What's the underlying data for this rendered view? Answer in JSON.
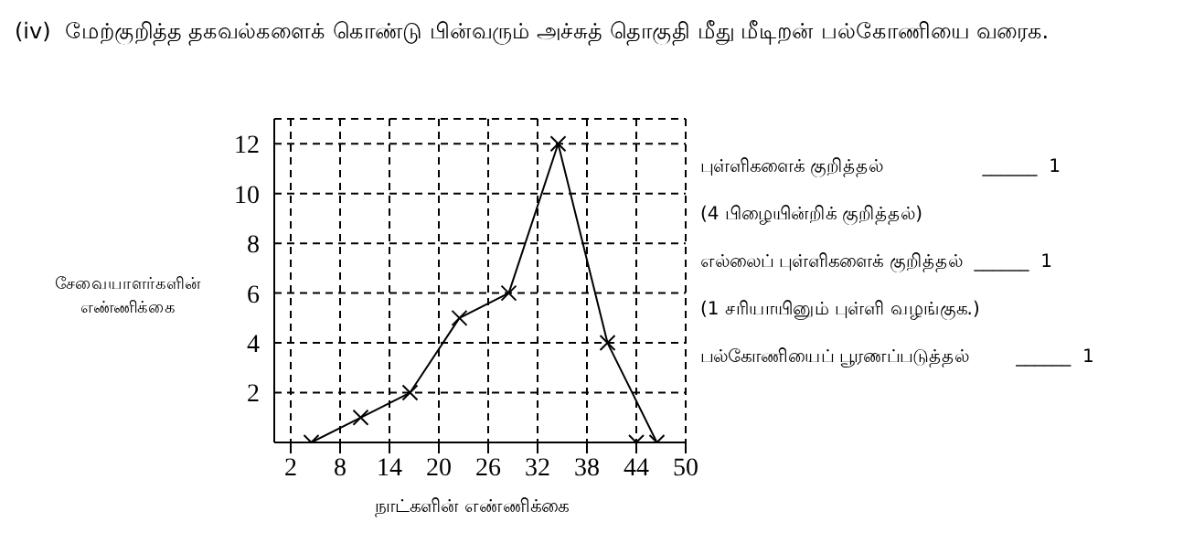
{
  "chart_data": {
    "type": "line",
    "title": "(iv)  மேற்குறித்த தகவல்களைக் கொண்டு பின்வரும் அச்சுத் தொகுதி மீது மீடிறன் பல்கோணியை வரைக.",
    "xlabel": "நாட்களின் எண்ணிக்கை",
    "ylabel": "சேவையாளர்களின் எண்ணிக்கை",
    "series": [
      {
        "color": "#000000",
        "x": [
          4.5,
          10.5,
          16.5,
          22.5,
          28.5,
          34.5,
          40.5,
          46.5
        ],
        "values": [
          0,
          1,
          2,
          5,
          6,
          12,
          4,
          0
        ],
        "marker": "cross"
      },
      {
        "type": "scatter",
        "color": "#000000",
        "x": [
          44
        ],
        "values": [
          0
        ],
        "marker": "cross"
      }
    ],
    "xlim": [
      0,
      50
    ],
    "xticks": [
      2,
      8,
      14,
      20,
      26,
      32,
      38,
      44,
      50
    ],
    "ylim": [
      0,
      13
    ],
    "yticks": [
      2,
      4,
      6,
      8,
      10,
      12
    ],
    "grid": true,
    "line_style": "solid",
    "annotations": [
      "புள்ளிகளைக் குறித்தல்                 ______  1",
      "(4 பிழையின்றிக் குறித்தல்)",
      "எல்லைப் புள்ளிகளைக் குறித்தல்  ______  1",
      "(1 சரியாயினும் புள்ளி வழங்குக.)",
      "பல்கோணியைப் பூரணப்படுத்தல்        ______  1"
    ]
  }
}
